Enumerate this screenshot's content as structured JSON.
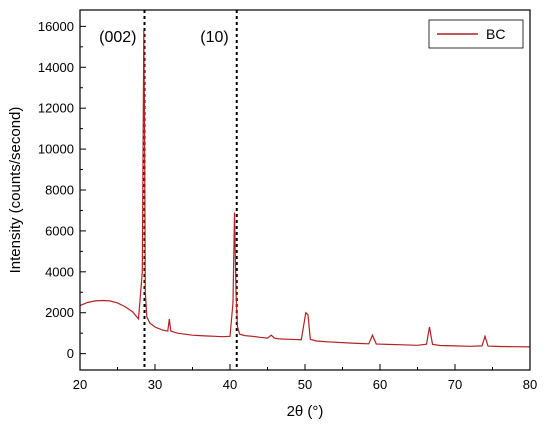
{
  "chart_data": {
    "type": "line",
    "xlabel": "2θ (°)",
    "ylabel": "Intensity (counts/second)",
    "xlim": [
      20,
      80
    ],
    "ylim": [
      -800,
      16800
    ],
    "x_ticks": [
      "20",
      "30",
      "40",
      "50",
      "60",
      "70",
      "80"
    ],
    "y_ticks": [
      "0",
      "2000",
      "4000",
      "6000",
      "8000",
      "10000",
      "12000",
      "14000",
      "16000"
    ],
    "grid": false,
    "legend_position": "top-right",
    "colors": {
      "series": "#b22222",
      "reference_lines": "#000000"
    },
    "series": [
      {
        "name": "BC",
        "x": [
          20,
          21,
          22,
          23,
          24,
          25,
          26,
          27,
          27.8,
          28.3,
          28.5,
          28.6,
          28.7,
          28.9,
          29.3,
          30,
          31,
          31.7,
          31.9,
          32.1,
          33,
          34,
          35,
          36,
          37,
          38,
          39,
          40,
          40.4,
          40.6,
          40.8,
          41,
          41.3,
          42,
          43,
          44,
          45,
          45.5,
          45.9,
          46.5,
          48,
          49.5,
          50.1,
          50.4,
          50.7,
          51.5,
          53,
          55,
          57,
          58.5,
          59,
          59.5,
          61,
          63,
          65,
          66.2,
          66.6,
          67,
          68,
          70,
          72,
          73.6,
          74,
          74.4,
          76,
          78,
          80
        ],
        "values": [
          2350,
          2500,
          2580,
          2600,
          2580,
          2480,
          2300,
          2050,
          1700,
          4000,
          15800,
          11500,
          3000,
          1800,
          1500,
          1300,
          1150,
          1100,
          1700,
          1100,
          1000,
          950,
          900,
          880,
          860,
          850,
          830,
          850,
          2500,
          6900,
          3000,
          1300,
          950,
          880,
          850,
          800,
          760,
          900,
          760,
          720,
          700,
          680,
          2000,
          1900,
          700,
          620,
          580,
          540,
          500,
          480,
          900,
          470,
          450,
          430,
          410,
          460,
          1300,
          450,
          400,
          380,
          360,
          380,
          850,
          370,
          350,
          340,
          330
        ]
      }
    ],
    "reference_lines": [
      {
        "x": 28.6,
        "label": "(002)"
      },
      {
        "x": 40.9,
        "label": "(10)"
      }
    ]
  }
}
